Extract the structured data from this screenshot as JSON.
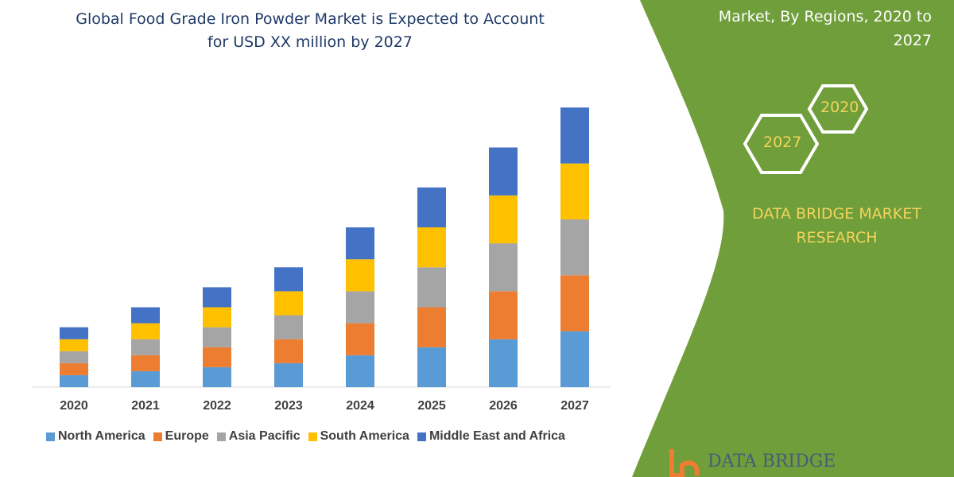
{
  "header": {
    "title_line1": "Global Food Grade Iron Powder Market is Expected to Account",
    "title_line2": "for USD XX million by 2027",
    "right_title_line1": "Market, By Regions, 2020 to",
    "right_title_line2": "2027"
  },
  "badges": {
    "year_start": "2020",
    "year_end": "2027"
  },
  "brand": {
    "name_line1": "DATA BRIDGE MARKET",
    "name_line2": "RESEARCH",
    "logo_text": "DATA BRIDGE"
  },
  "colors": {
    "panel_green": "#6f9e3a",
    "accent_yellow": "#f2d45c",
    "title_blue": "#1f3a68"
  },
  "chart_data": {
    "type": "bar",
    "stacked": true,
    "title": "Global Food Grade Iron Powder Market is Expected to Account for USD XX million by 2027",
    "categories": [
      "2020",
      "2021",
      "2022",
      "2023",
      "2024",
      "2025",
      "2026",
      "2027"
    ],
    "series": [
      {
        "name": "North America",
        "color": "#5b9bd5",
        "values": [
          15,
          20,
          25,
          30,
          40,
          50,
          60,
          70
        ]
      },
      {
        "name": "Europe",
        "color": "#ed7d31",
        "values": [
          15,
          20,
          25,
          30,
          40,
          50,
          60,
          70
        ]
      },
      {
        "name": "Asia Pacific",
        "color": "#a5a5a5",
        "values": [
          15,
          20,
          25,
          30,
          40,
          50,
          60,
          70
        ]
      },
      {
        "name": "South America",
        "color": "#ffc000",
        "values": [
          15,
          20,
          25,
          30,
          40,
          50,
          60,
          70
        ]
      },
      {
        "name": "Middle East and Africa",
        "color": "#4472c4",
        "values": [
          15,
          20,
          25,
          30,
          40,
          50,
          60,
          70
        ]
      }
    ],
    "xlabel": "",
    "ylabel": "",
    "y_axis_visible": false,
    "grid": false,
    "legend_position": "bottom"
  }
}
